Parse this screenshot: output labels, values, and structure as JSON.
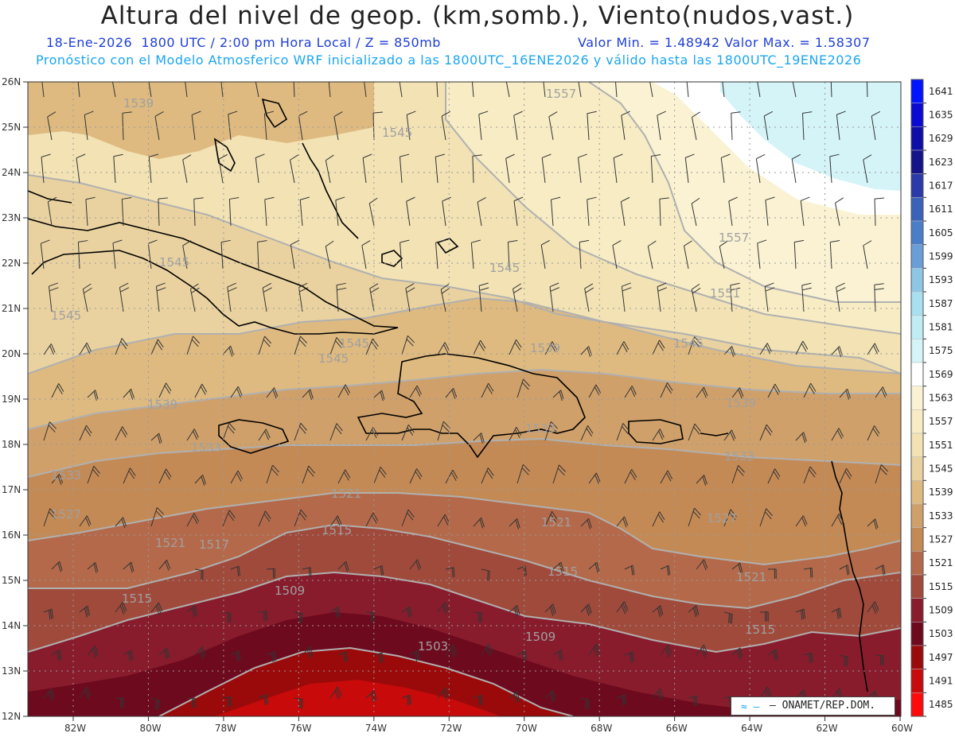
{
  "header": {
    "title": "Altura del nivel de geop. (km,somb.), Viento(nudos,vast.)",
    "date": "18-Ene-2026",
    "time_info": "1800 UTC / 2:00 pm Hora Local / Z = 850mb",
    "min_max": "Valor Min. = 1.48942  Valor Max. = 1.58307",
    "model_info": "Pronóstico con el Modelo Atmosferico WRF inicializado a las 1800UTC_16ENE2026 y válido hasta las  1800UTC_19ENE2026"
  },
  "credit": {
    "text": "ONAMET/REP.DOM."
  },
  "axes": {
    "lat_labels": [
      "12N",
      "13N",
      "14N",
      "15N",
      "16N",
      "17N",
      "18N",
      "19N",
      "20N",
      "21N",
      "22N",
      "23N",
      "24N",
      "25N",
      "26N"
    ],
    "lon_labels": [
      "82W",
      "80W",
      "78W",
      "76W",
      "74W",
      "72W",
      "70W",
      "68W",
      "66W",
      "64W",
      "62W",
      "60W"
    ]
  },
  "colorbar": {
    "values": [
      1641,
      1635,
      1629,
      1623,
      1617,
      1611,
      1605,
      1599,
      1593,
      1587,
      1581,
      1575,
      1569,
      1563,
      1557,
      1551,
      1545,
      1539,
      1533,
      1527,
      1521,
      1515,
      1509,
      1503,
      1497,
      1491,
      1485
    ],
    "colors": [
      "#0014ff",
      "#0a0ad2",
      "#0f0fa8",
      "#141488",
      "#2a3aa8",
      "#3a62b8",
      "#4a7ec8",
      "#6a9ed6",
      "#8ec6e6",
      "#a8e0f0",
      "#c0ecf4",
      "#d4f4f8",
      "#ffffff",
      "#faf2d2",
      "#f8ecc4",
      "#f2e2b4",
      "#ead2a0",
      "#deba80",
      "#d0a06a",
      "#c48a56",
      "#b46a4a",
      "#a04a3c",
      "#881c2c",
      "#6e0a1e",
      "#9a0a0a",
      "#c80a0a",
      "#ff0a0a"
    ]
  },
  "contour_labels": [
    "1539",
    "1545",
    "1557",
    "1545",
    "1557",
    "1545",
    "1551",
    "1545",
    "1545",
    "1545",
    "1539",
    "1539",
    "1545",
    "1539",
    "1533",
    "1533",
    "1533",
    "1533",
    "1527",
    "1527",
    "1521",
    "1521",
    "1521",
    "1517",
    "1521",
    "1515",
    "1515",
    "1515",
    "1509",
    "1509",
    "1515",
    "1503"
  ],
  "colors": {
    "title": "#222222",
    "subtitle": "#1f3fd6",
    "model_info": "#1aa6f0",
    "contour_line": "#b0b0b0",
    "coast": "#000000"
  }
}
